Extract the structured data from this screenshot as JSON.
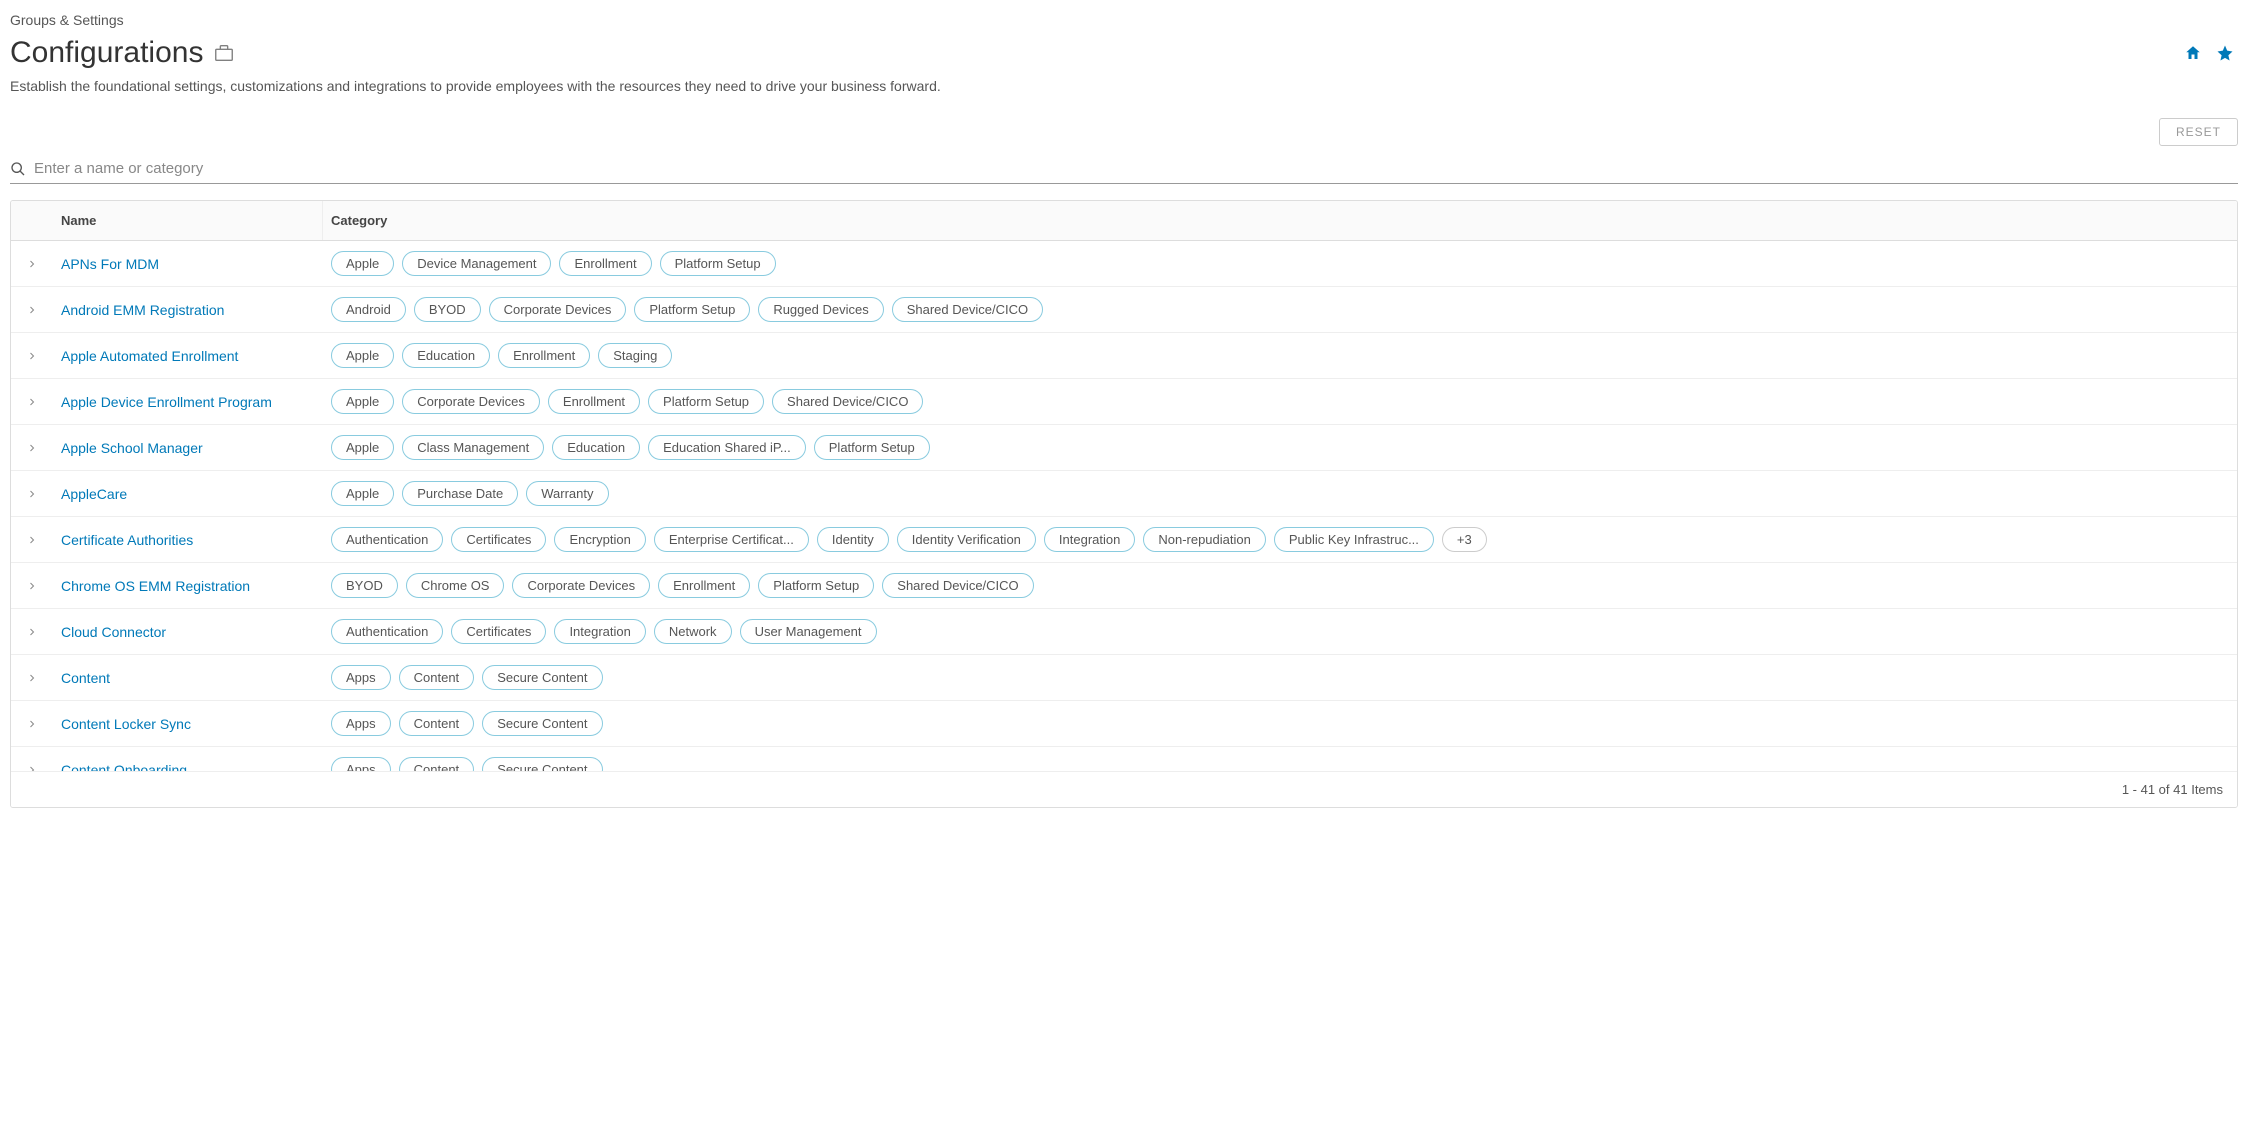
{
  "breadcrumb": "Groups & Settings",
  "title": "Configurations",
  "description": "Establish the foundational settings, customizations and integrations to provide employees with the resources they need to drive your business forward.",
  "reset_label": "RESET",
  "search_placeholder": "Enter a name or category",
  "columns": {
    "name": "Name",
    "category": "Category"
  },
  "rows": [
    {
      "name": "APNs For MDM",
      "tags": [
        "Apple",
        "Device Management",
        "Enrollment",
        "Platform Setup"
      ]
    },
    {
      "name": "Android EMM Registration",
      "tags": [
        "Android",
        "BYOD",
        "Corporate Devices",
        "Platform Setup",
        "Rugged Devices",
        "Shared Device/CICO"
      ]
    },
    {
      "name": "Apple Automated Enrollment",
      "tags": [
        "Apple",
        "Education",
        "Enrollment",
        "Staging"
      ]
    },
    {
      "name": "Apple Device Enrollment Program",
      "tags": [
        "Apple",
        "Corporate Devices",
        "Enrollment",
        "Platform Setup",
        "Shared Device/CICO"
      ]
    },
    {
      "name": "Apple School Manager",
      "tags": [
        "Apple",
        "Class Management",
        "Education",
        "Education Shared iP...",
        "Platform Setup"
      ]
    },
    {
      "name": "AppleCare",
      "tags": [
        "Apple",
        "Purchase Date",
        "Warranty"
      ]
    },
    {
      "name": "Certificate Authorities",
      "tags": [
        "Authentication",
        "Certificates",
        "Encryption",
        "Enterprise Certificat...",
        "Identity",
        "Identity Verification",
        "Integration",
        "Non-repudiation",
        "Public Key Infrastruc..."
      ],
      "more": "+3"
    },
    {
      "name": "Chrome OS EMM Registration",
      "tags": [
        "BYOD",
        "Chrome OS",
        "Corporate Devices",
        "Enrollment",
        "Platform Setup",
        "Shared Device/CICO"
      ]
    },
    {
      "name": "Cloud Connector",
      "tags": [
        "Authentication",
        "Certificates",
        "Integration",
        "Network",
        "User Management"
      ]
    },
    {
      "name": "Content",
      "tags": [
        "Apps",
        "Content",
        "Secure Content"
      ]
    },
    {
      "name": "Content Locker Sync",
      "tags": [
        "Apps",
        "Content",
        "Secure Content"
      ]
    },
    {
      "name": "Content Onboarding",
      "tags": [
        "Apps",
        "Content",
        "Secure Content"
      ]
    }
  ],
  "footer_text": "1 - 41 of 41 Items",
  "colors": {
    "link": "#0079b8",
    "tag_border": "#89cbdf",
    "text": "#565656"
  }
}
